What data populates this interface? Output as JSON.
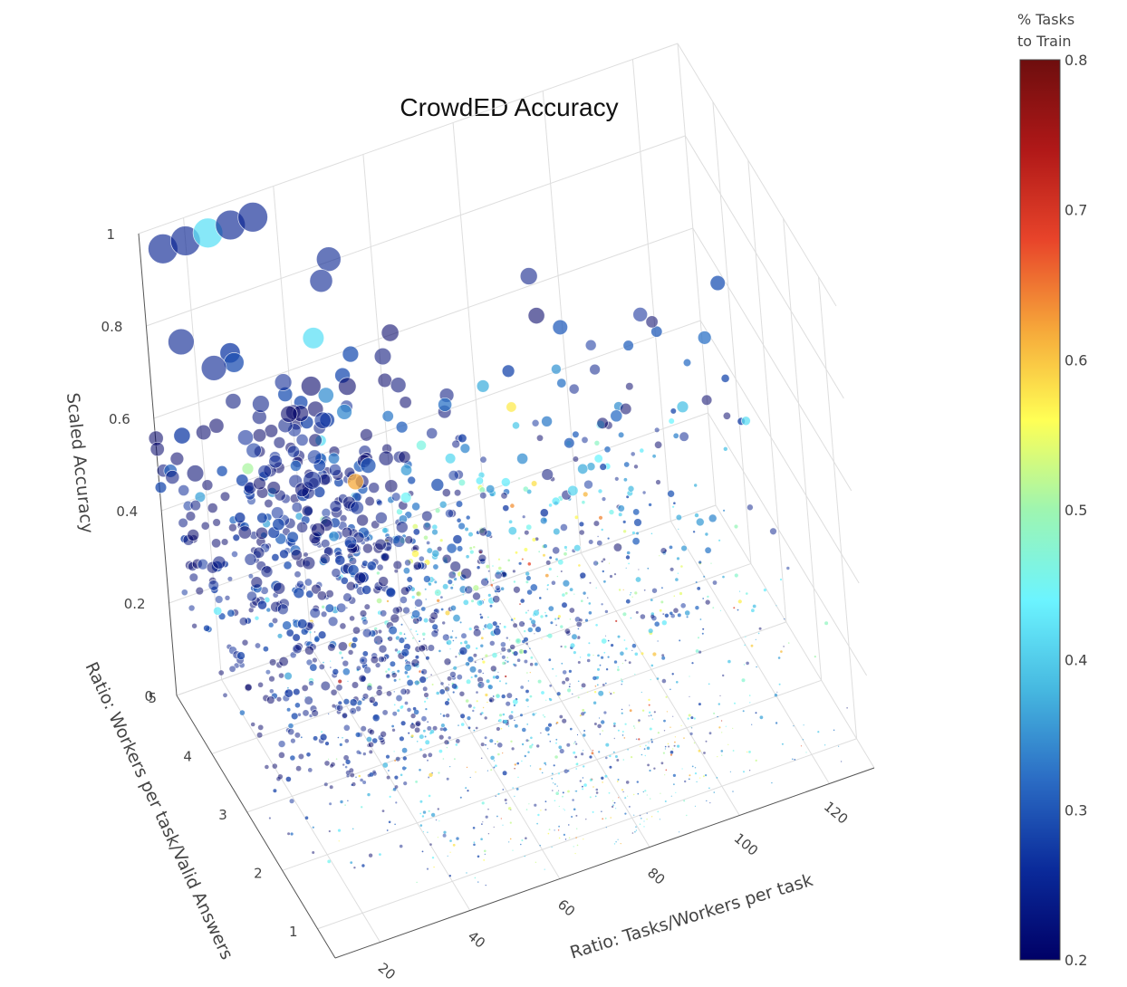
{
  "chart_data": {
    "type": "scatter3d",
    "title": "CrowdED Accuracy",
    "axes": {
      "x": {
        "label": "Ratio: Tasks/Workers per task",
        "range": [
          10,
          130
        ],
        "ticks": [
          "20",
          "40",
          "60",
          "80",
          "100",
          "120"
        ]
      },
      "y": {
        "label": "Ratio: Workers per task/Valid Answers",
        "range": [
          0.5,
          5
        ],
        "ticks": [
          "1",
          "2",
          "3",
          "4",
          "5"
        ]
      },
      "z": {
        "label": "Scaled Accuracy",
        "range": [
          0,
          1
        ],
        "ticks": [
          "0",
          "0.2",
          "0.4",
          "0.6",
          "0.8",
          "1"
        ]
      }
    },
    "marker": {
      "size_encodes": "Scaled Accuracy",
      "opacity": 0.75
    },
    "colorbar": {
      "title_line1": "% Tasks",
      "title_line2": "to Train",
      "range": [
        0.2,
        0.8
      ],
      "ticks": [
        "0.8",
        "0.7",
        "0.6",
        "0.5",
        "0.4",
        "0.3",
        "0.2"
      ],
      "colorscale": [
        "#000066",
        "#0a2a9a",
        "#2b6cc4",
        "#46b8e0",
        "#6cf4ff",
        "#9ef5b0",
        "#ffff55",
        "#f6a83a",
        "#e8442a",
        "#b01818",
        "#6e0e0e"
      ]
    },
    "highlight_points": [
      {
        "x": 15,
        "y": 5.0,
        "z": 0.95,
        "c": 0.25
      },
      {
        "x": 20,
        "y": 5.0,
        "z": 0.95,
        "c": 0.25
      },
      {
        "x": 25,
        "y": 5.0,
        "z": 0.95,
        "c": 0.42
      },
      {
        "x": 30,
        "y": 5.0,
        "z": 0.95,
        "c": 0.25
      },
      {
        "x": 35,
        "y": 5.0,
        "z": 0.95,
        "c": 0.25
      },
      {
        "x": 12,
        "y": 4.2,
        "z": 0.86,
        "c": 0.25
      },
      {
        "x": 16,
        "y": 3.8,
        "z": 0.84,
        "c": 0.25
      },
      {
        "x": 50,
        "y": 4.9,
        "z": 0.82,
        "c": 0.25
      },
      {
        "x": 48,
        "y": 4.9,
        "z": 0.78,
        "c": 0.25
      },
      {
        "x": 42,
        "y": 4.4,
        "z": 0.74,
        "c": 0.42
      },
      {
        "x": 38,
        "y": 4.0,
        "z": 0.7,
        "c": 0.2
      },
      {
        "x": 30,
        "y": 3.0,
        "z": 0.65,
        "c": 0.25
      },
      {
        "x": 58,
        "y": 4.6,
        "z": 0.62,
        "c": 0.22
      },
      {
        "x": 45,
        "y": 3.4,
        "z": 0.58,
        "c": 0.3
      },
      {
        "x": 40,
        "y": 3.1,
        "z": 0.6,
        "c": 0.62
      }
    ],
    "clusters": [
      {
        "x_center": 35,
        "x_spread": 30,
        "y_range": [
          1.5,
          5
        ],
        "z_center": 0.45,
        "z_spread": 0.12,
        "count": 650,
        "color_center": 0.24,
        "color_spread": 0.05
      },
      {
        "x_center": 60,
        "x_spread": 40,
        "y_range": [
          0.5,
          5
        ],
        "z_center": 0.25,
        "z_spread": 0.12,
        "count": 600,
        "color_center": 0.34,
        "color_spread": 0.1
      },
      {
        "x_center": 80,
        "x_spread": 45,
        "y_range": [
          0.5,
          5
        ],
        "z_center": 0.1,
        "z_spread": 0.08,
        "count": 700,
        "color_center": 0.42,
        "color_spread": 0.12
      },
      {
        "x_center": 100,
        "x_spread": 30,
        "y_range": [
          2,
          5
        ],
        "z_center": 0.35,
        "z_spread": 0.15,
        "count": 140,
        "color_center": 0.28,
        "color_spread": 0.08
      }
    ]
  }
}
